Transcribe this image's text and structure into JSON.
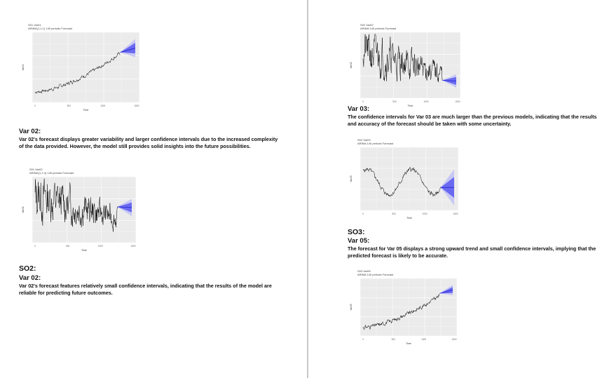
{
  "figures": [
    {
      "id": "fig1",
      "title_line1": "S01 Var01",
      "title_line2": "ARIMA(1,1,1) 140 periods Forecast",
      "ylabel": "Var01",
      "xlabel": "Time",
      "x_ticks": [
        "0",
        "500",
        "1000",
        "1500"
      ],
      "chart_data": {
        "type": "line",
        "trend": "up",
        "volatility": 0.35,
        "band_scale": 1.0,
        "seed": 7
      }
    },
    {
      "id": "fig2",
      "title_line1": "S01 Var02",
      "title_line2": "ARIMA(1,1,4) 140 periods Forecast",
      "ylabel": "Var02",
      "xlabel": "Time",
      "x_ticks": [
        "0",
        "500",
        "1000",
        "1500"
      ],
      "chart_data": {
        "type": "line",
        "trend": "down-noisy",
        "volatility": 1.0,
        "band_scale": 1.0,
        "seed": 13
      }
    },
    {
      "id": "fig3",
      "title_line1": "S02 Var02",
      "title_line2": "ARIMA 140 periods Forecast",
      "ylabel": "Var02",
      "xlabel": "Time",
      "x_ticks": [
        "0",
        "500",
        "1000",
        "1500"
      ],
      "chart_data": {
        "type": "line",
        "trend": "down-noisy",
        "volatility": 0.9,
        "band_scale": 0.8,
        "seed": 21
      }
    },
    {
      "id": "fig4",
      "title_line1": "S02 Var03",
      "title_line2": "ARIMA 140 periods Forecast",
      "ylabel": "Var03",
      "xlabel": "Time",
      "x_ticks": [
        "0",
        "500",
        "1000",
        "1500"
      ],
      "chart_data": {
        "type": "line",
        "trend": "cyclic",
        "volatility": 0.45,
        "band_scale": 2.2,
        "seed": 5
      }
    },
    {
      "id": "fig5",
      "title_line1": "S03 Var05",
      "title_line2": "ARIMA 140 periods Forecast",
      "ylabel": "Var05",
      "xlabel": "Time",
      "x_ticks": [
        "0",
        "500",
        "1000",
        "1500"
      ],
      "chart_data": {
        "type": "line",
        "trend": "up",
        "volatility": 0.45,
        "band_scale": 0.7,
        "seed": 31
      }
    }
  ],
  "left": {
    "var02_heading": "Var 02:",
    "var02_text": "Var 02's forecast displays greater variability and larger confidence intervals due to the increased complexity of the data provided. However, the model still provides solid insights into the future possibilities.",
    "so2_heading": "SO2:",
    "so2_var_heading": "Var 02:",
    "so2_text": "Var 02's forecast features relatively small confidence intervals, indicating that the results of the model are reliable for predicting future outcomes."
  },
  "right": {
    "var03_heading": "Var 03:",
    "var03_text": "The confidence intervals for Var 03 are much larger than the previous models, indicating that the results and accuracy of the forecast should be taken with some uncertainty.",
    "so3_heading": "SO3:",
    "so3_var_heading": "Var 05:",
    "so3_text": "The forecast for Var 05 displays a strong upward trend and small confidence intervals, implying that the predicted forecast is likely to be accurate."
  },
  "colors": {
    "panel_bg": "#ebebeb",
    "grid": "#ffffff",
    "series": "#000000",
    "band_outer": "#c8c8f5",
    "band_inner": "#6a6af0",
    "forecast_line": "#1a1ad0"
  }
}
